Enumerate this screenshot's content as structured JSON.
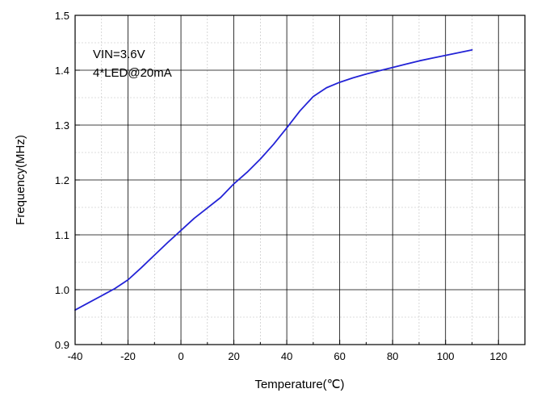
{
  "chart_data": {
    "type": "line",
    "title": "",
    "xlabel": "Temperature(℃)",
    "ylabel": "Frequency(MHz)",
    "xlim": [
      -40,
      130
    ],
    "ylim": [
      0.9,
      1.5
    ],
    "x_ticks": [
      "-40",
      "-20",
      "0",
      "20",
      "40",
      "60",
      "80",
      "100",
      "120"
    ],
    "y_ticks": [
      "0.9",
      "1.0",
      "1.1",
      "1.2",
      "1.3",
      "1.4",
      "1.5"
    ],
    "grid": true,
    "annotations": [
      "VIN=3.6V",
      "4*LED@20mA"
    ],
    "series": [
      {
        "color": "#2323d6",
        "x": [
          -40,
          -35,
          -30,
          -25,
          -20,
          -15,
          -10,
          -5,
          0,
          5,
          10,
          15,
          20,
          25,
          30,
          35,
          40,
          45,
          50,
          55,
          60,
          65,
          70,
          75,
          80,
          85,
          90,
          95,
          100,
          105,
          110
        ],
        "y": [
          0.963,
          0.976,
          0.989,
          1.002,
          1.018,
          1.04,
          1.063,
          1.086,
          1.108,
          1.13,
          1.149,
          1.168,
          1.193,
          1.214,
          1.238,
          1.265,
          1.295,
          1.326,
          1.352,
          1.368,
          1.378,
          1.386,
          1.393,
          1.399,
          1.405,
          1.411,
          1.417,
          1.422,
          1.427,
          1.432,
          1.437
        ]
      }
    ]
  }
}
